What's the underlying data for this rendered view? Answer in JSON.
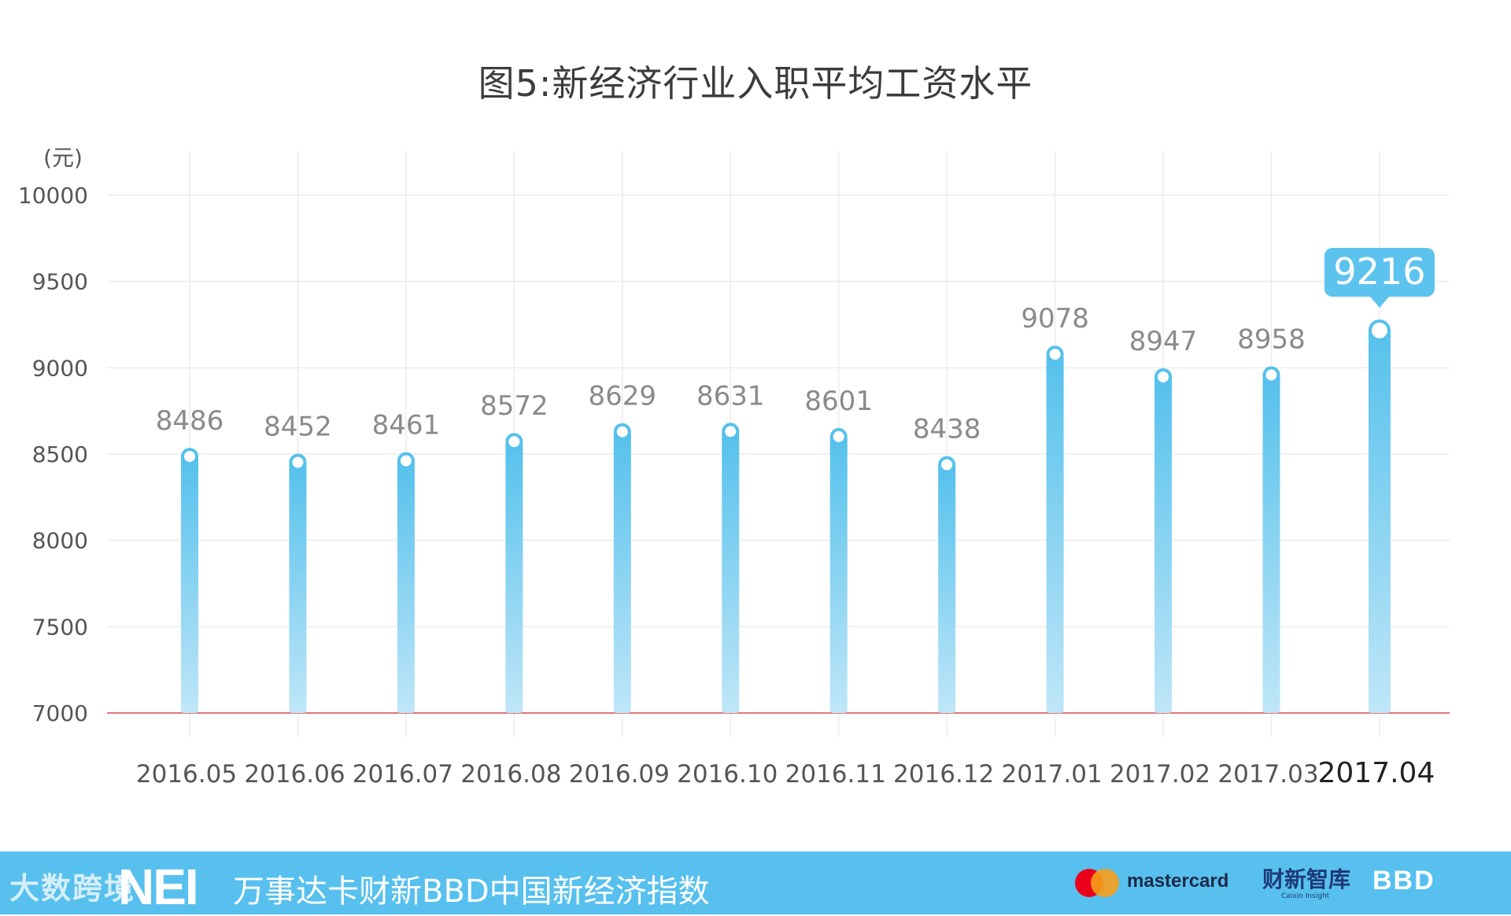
{
  "chart_data": {
    "type": "bar",
    "title": "图5:新经济行业入职平均工资水平",
    "ylabel": "(元)",
    "ylim": [
      7000,
      10000
    ],
    "yticks": [
      7000,
      7500,
      8000,
      8500,
      9000,
      9500,
      10000
    ],
    "categories": [
      "2016.05",
      "2016.06",
      "2016.07",
      "2016.08",
      "2016.09",
      "2016.10",
      "2016.11",
      "2016.12",
      "2017.01",
      "2017.02",
      "2017.03",
      "2017.04"
    ],
    "values": [
      8486,
      8452,
      8461,
      8572,
      8629,
      8631,
      8601,
      8438,
      9078,
      8947,
      8958,
      9216
    ],
    "highlight": "2017.04",
    "grid": true,
    "colors": {
      "bar_top": "#55c1ec",
      "bar_bottom": "#bfe6f8",
      "highlight_label_bg": "#5cc3ee",
      "baseline": "#d94c4c"
    }
  },
  "footer": {
    "watermark": "大数跨境",
    "logo": "NEI",
    "index_name": "万事达卡财新BBD中国新经济指数",
    "sponsor_1": "mastercard",
    "sponsor_2": "财新智库",
    "sponsor_2_sub": "Caixin Insight",
    "sponsor_3": "BBD"
  }
}
